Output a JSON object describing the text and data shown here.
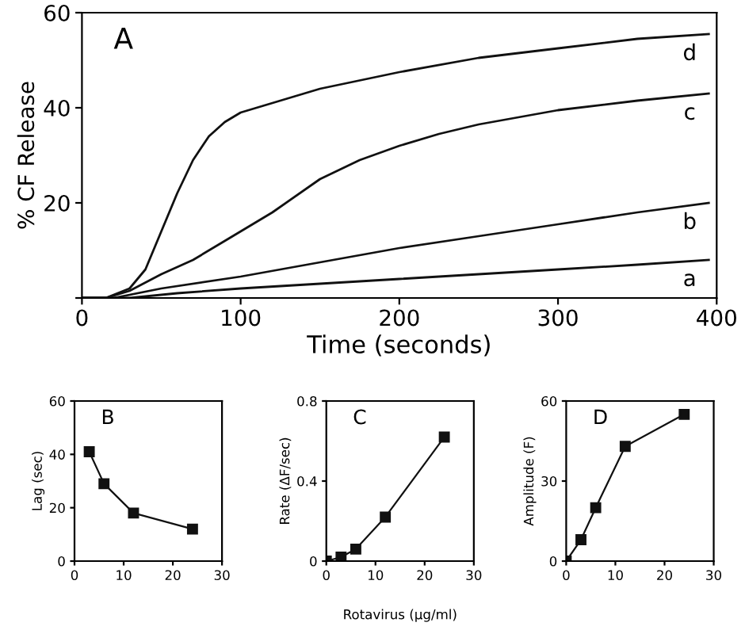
{
  "chart_data": [
    {
      "type": "line",
      "title": "A",
      "xlabel": "Time (seconds)",
      "ylabel": "% CF Release",
      "xlim": [
        0,
        400
      ],
      "ylim": [
        0,
        60
      ],
      "xticks": [
        0,
        100,
        200,
        300,
        400
      ],
      "yticks": [
        {
          "value": 0,
          "label": null
        },
        20,
        40,
        60
      ],
      "marker": "none",
      "grid": false,
      "legend": false,
      "series": [
        {
          "name": "d",
          "color": "#111111",
          "x": [
            0,
            15,
            30,
            40,
            50,
            60,
            70,
            80,
            90,
            100,
            120,
            150,
            200,
            250,
            300,
            350,
            395
          ],
          "values": [
            0,
            0,
            2,
            6,
            14,
            22,
            29,
            34,
            37,
            39,
            41,
            44,
            47.5,
            50.5,
            52.5,
            54.5,
            55.5
          ]
        },
        {
          "name": "c",
          "color": "#111111",
          "x": [
            0,
            15,
            30,
            50,
            70,
            90,
            100,
            120,
            150,
            175,
            200,
            225,
            250,
            300,
            350,
            395
          ],
          "values": [
            0,
            0,
            1.5,
            5,
            8,
            12,
            14,
            18,
            25,
            29,
            32,
            34.5,
            36.5,
            39.5,
            41.5,
            43
          ]
        },
        {
          "name": "b",
          "color": "#111111",
          "x": [
            0,
            20,
            50,
            100,
            150,
            200,
            250,
            300,
            350,
            395
          ],
          "values": [
            0,
            0,
            2,
            4.5,
            7.5,
            10.5,
            13,
            15.5,
            18,
            20
          ]
        },
        {
          "name": "a",
          "color": "#111111",
          "x": [
            0,
            30,
            60,
            100,
            150,
            200,
            250,
            300,
            350,
            395
          ],
          "values": [
            0,
            0,
            1,
            2,
            3,
            4,
            5,
            6,
            7,
            8
          ]
        }
      ]
    },
    {
      "type": "line",
      "title": "B",
      "ylabel": "Lag (sec)",
      "xlim": [
        0,
        30
      ],
      "ylim": [
        0,
        60
      ],
      "xticks": [
        0,
        10,
        20,
        30
      ],
      "yticks": [
        0,
        20,
        40,
        60
      ],
      "marker": "square",
      "grid": false,
      "legend": false,
      "series": [
        {
          "color": "#111111",
          "x": [
            3,
            6,
            12,
            24
          ],
          "values": [
            41,
            29,
            18,
            12
          ]
        }
      ]
    },
    {
      "type": "line",
      "title": "C",
      "xlabel": "Rotavirus (µg/ml)",
      "ylabel": "Rate (ΔF/sec)",
      "xlim": [
        0,
        30
      ],
      "ylim": [
        0,
        0.8
      ],
      "xticks": [
        0,
        10,
        20,
        30
      ],
      "yticks": [
        0,
        0.4,
        0.8
      ],
      "marker": "square",
      "grid": false,
      "legend": false,
      "series": [
        {
          "color": "#111111",
          "x": [
            0,
            3,
            6,
            12,
            24
          ],
          "values": [
            0,
            0.02,
            0.06,
            0.22,
            0.62
          ]
        }
      ]
    },
    {
      "type": "line",
      "title": "D",
      "ylabel": "Amplitude (F)",
      "xlim": [
        0,
        30
      ],
      "ylim": [
        0,
        60
      ],
      "xticks": [
        0,
        10,
        20,
        30
      ],
      "yticks": [
        0,
        30,
        60
      ],
      "marker": "square",
      "grid": false,
      "legend": false,
      "series": [
        {
          "color": "#111111",
          "x": [
            0,
            3,
            6,
            12,
            24
          ],
          "values": [
            0,
            8,
            20,
            43,
            55
          ]
        }
      ]
    }
  ]
}
